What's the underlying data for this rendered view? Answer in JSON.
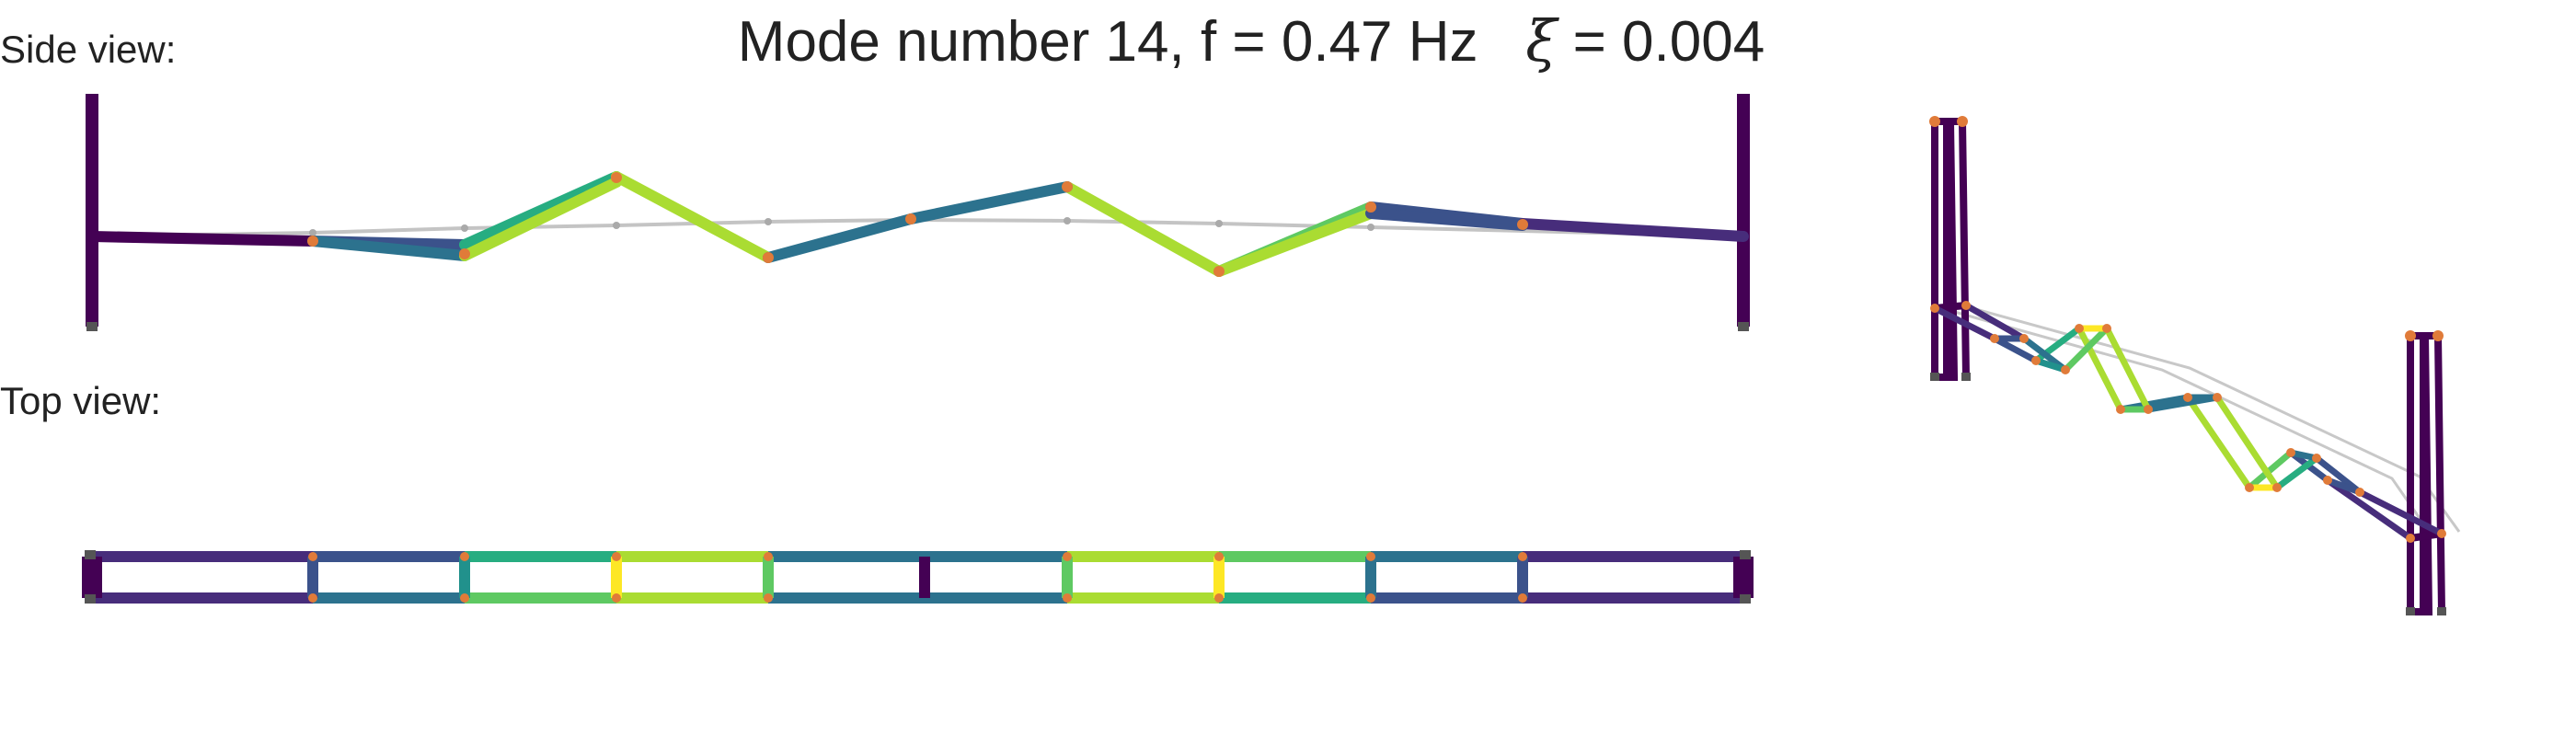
{
  "title": {
    "mode_text": "Mode number 14, f = 0.47 Hz",
    "xi_symbol": "ξ",
    "xi_text": " = 0.004"
  },
  "labels": {
    "side_view": "Side view:",
    "top_view": "Top view:"
  },
  "colors": {
    "tower": "#440154",
    "undeformed": "#c4c4c4",
    "node_marker": "#e07b39",
    "support_marker": "#555555",
    "c0": "#440154",
    "c1": "#472d7b",
    "c2": "#3b528b",
    "c3": "#2c728e",
    "c4": "#21918c",
    "c5": "#27ad81",
    "c6": "#5ec962",
    "c7": "#aadc32",
    "c8": "#fde725"
  }
}
